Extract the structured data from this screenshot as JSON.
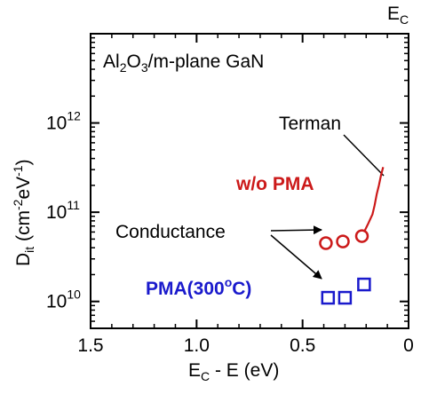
{
  "chart_data": {
    "type": "scatter",
    "title": "Al2O3/m-plane GaN",
    "title_parts": {
      "p1": "Al",
      "s1": "2",
      "p2": "O",
      "s2": "3",
      "p3": "/m-plane GaN"
    },
    "xlabel": "EC - E (eV)",
    "xlabel_parts": {
      "main": "E",
      "sub": "C",
      "rest": " - E (eV)"
    },
    "ylabel": "Dit (cm-2eV-1)",
    "ylabel_parts": {
      "main": "D",
      "sub": "it",
      "mid": " (cm",
      "sup1": "-2",
      "mid2": "eV",
      "sup2": "-1",
      "end": ")"
    },
    "top_marker": {
      "main": "E",
      "sub": "C"
    },
    "xlim": [
      1.5,
      0
    ],
    "ylim": [
      5000000000.0,
      10000000000000.0
    ],
    "yscale": "log",
    "x_ticks": [
      "1.5",
      "1.0",
      "0.5",
      "0"
    ],
    "x_tick_values": [
      1.5,
      1.0,
      0.5,
      0
    ],
    "y_ticks": [
      {
        "value": 10000000000.0,
        "base": "10",
        "exp": "10"
      },
      {
        "value": 100000000000.0,
        "base": "10",
        "exp": "11"
      },
      {
        "value": 1000000000000.0,
        "base": "10",
        "exp": "12"
      }
    ],
    "grid": false,
    "series": [
      {
        "name": "w/o PMA",
        "marker": "circle",
        "color": "#cc1a1a",
        "x": [
          0.39,
          0.31,
          0.22
        ],
        "y": [
          45000000000.0,
          47000000000.0,
          54000000000.0
        ]
      },
      {
        "name": "PMA(300oC)",
        "marker": "square",
        "color": "#1a1acc",
        "x": [
          0.38,
          0.3,
          0.21
        ],
        "y": [
          11000000000.0,
          11000000000.0,
          15500000000.0
        ]
      },
      {
        "name": "Terman",
        "marker": "line",
        "color": "#cc1a1a",
        "x": [
          0.21,
          0.19,
          0.17,
          0.16,
          0.15,
          0.14,
          0.13,
          0.12
        ],
        "y": [
          60000000000.0,
          75000000000.0,
          95000000000.0,
          120000000000.0,
          160000000000.0,
          200000000000.0,
          260000000000.0,
          320000000000.0
        ]
      }
    ],
    "annotations": {
      "terman": "Terman",
      "conductance": "Conductance",
      "wo_pma": "w/o PMA",
      "pma_parts": {
        "pre": "PMA(300",
        "sup": "o",
        "post": "C)"
      }
    }
  },
  "colors": {
    "red": "#cc1a1a",
    "blue": "#1a1acc",
    "axis": "#000000"
  }
}
